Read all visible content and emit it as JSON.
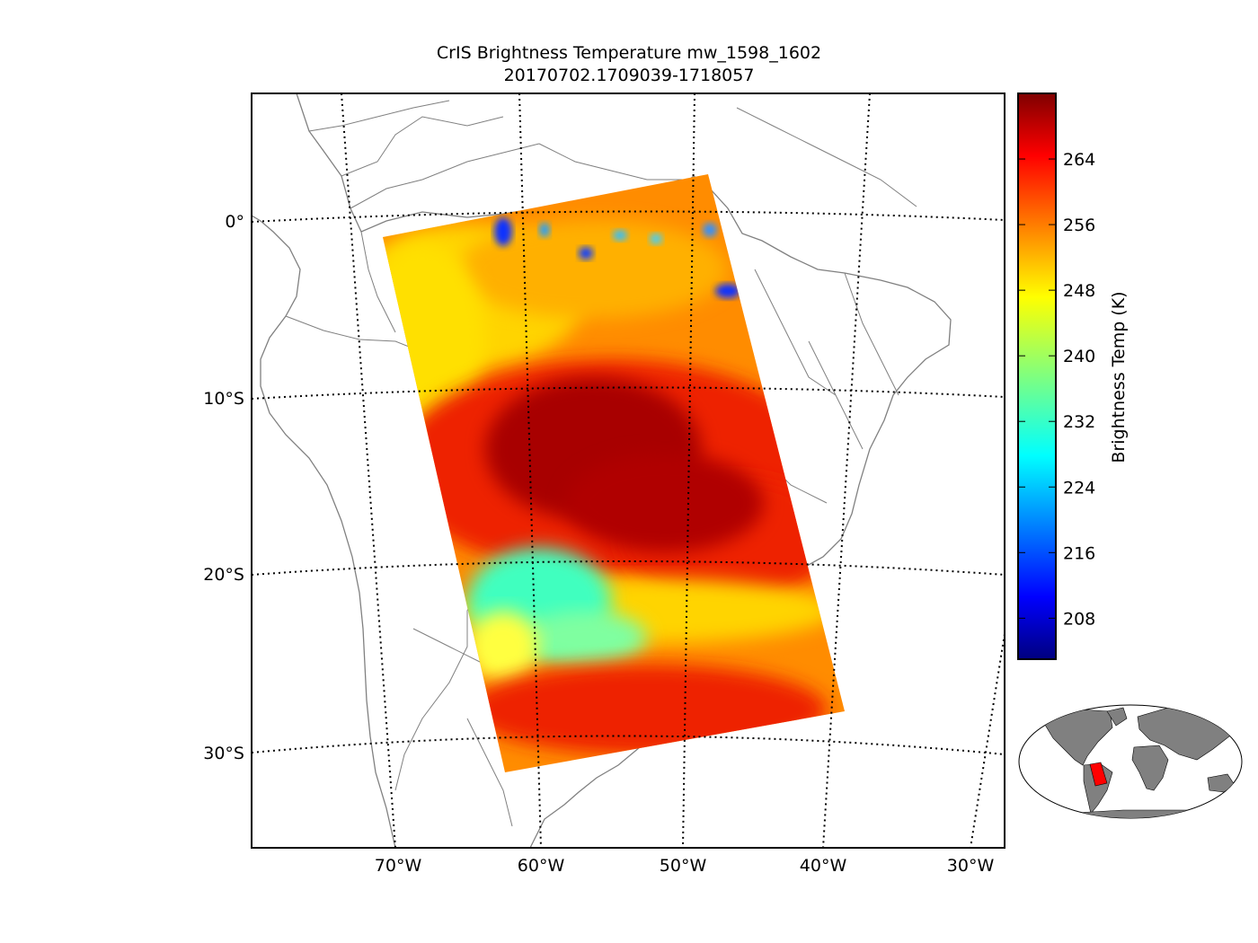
{
  "title": {
    "line1": "CrIS Brightness Temperature mw_1598_1602",
    "line2": "20170702.1709039-1718057"
  },
  "map": {
    "lat_labels": [
      "0°",
      "10°S",
      "20°S",
      "30°S"
    ],
    "lon_labels": [
      "70°W",
      "60°W",
      "50°W",
      "40°W",
      "30°W"
    ],
    "coastline_color": "#808080",
    "graticule": "dotted"
  },
  "colorbar": {
    "label": "Brightness Temp (K)",
    "ticks": [
      "208",
      "216",
      "224",
      "232",
      "240",
      "248",
      "256",
      "264"
    ],
    "colormap": "jet",
    "range": [
      203,
      272
    ]
  },
  "inset": {
    "description_color_land": "#808080",
    "swath_color": "#ff0000"
  }
}
